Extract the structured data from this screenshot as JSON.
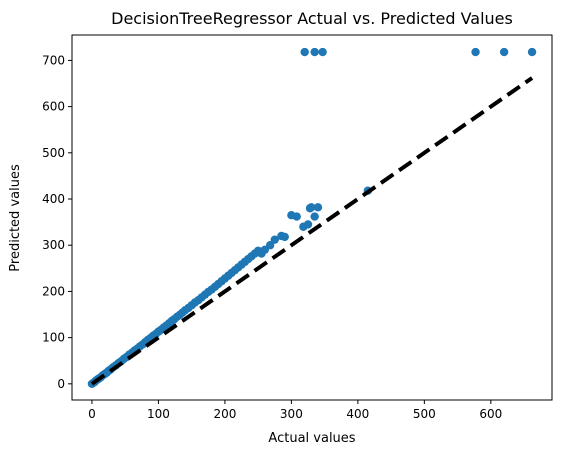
{
  "chart_data": {
    "type": "scatter",
    "title": "DecisionTreeRegressor Actual vs. Predicted Values",
    "xlabel": "Actual values",
    "ylabel": "Predicted values",
    "xlim": [
      -30,
      692
    ],
    "ylim": [
      -35,
      755
    ],
    "xticks": [
      0,
      100,
      200,
      300,
      400,
      500,
      600
    ],
    "yticks": [
      0,
      100,
      200,
      300,
      400,
      500,
      600,
      700
    ],
    "grid": false,
    "legend": "none",
    "colors": {
      "points": "#1f77b4",
      "reference_line": "#000000"
    },
    "reference_line": {
      "style": "dashed",
      "from": [
        0,
        0
      ],
      "to": [
        662,
        662
      ]
    },
    "points": {
      "x": [
        0,
        2,
        4,
        6,
        8,
        10,
        13,
        16,
        19,
        22,
        25,
        28,
        32,
        36,
        40,
        44,
        48,
        52,
        56,
        60,
        64,
        68,
        72,
        76,
        80,
        84,
        88,
        92,
        96,
        100,
        104,
        108,
        112,
        116,
        120,
        124,
        128,
        132,
        136,
        140,
        145,
        150,
        155,
        160,
        165,
        170,
        175,
        180,
        185,
        190,
        195,
        200,
        205,
        210,
        215,
        220,
        225,
        230,
        235,
        240,
        245,
        250,
        255,
        260,
        268,
        275,
        285,
        290,
        300,
        308,
        318,
        325,
        328,
        330,
        335,
        340,
        415,
        320,
        335,
        347,
        577,
        620,
        662
      ],
      "y": [
        0,
        2,
        4,
        7,
        9,
        11,
        14,
        18,
        21,
        24,
        28,
        31,
        36,
        40,
        45,
        49,
        54,
        58,
        63,
        67,
        72,
        76,
        81,
        85,
        90,
        95,
        99,
        104,
        108,
        113,
        117,
        122,
        126,
        131,
        136,
        140,
        145,
        149,
        154,
        159,
        164,
        170,
        176,
        181,
        187,
        193,
        199,
        204,
        210,
        216,
        222,
        228,
        234,
        240,
        246,
        252,
        258,
        264,
        270,
        276,
        282,
        288,
        282,
        290,
        300,
        312,
        320,
        318,
        365,
        362,
        340,
        345,
        380,
        382,
        362,
        382,
        418,
        718,
        718,
        718,
        718,
        718,
        718
      ]
    }
  }
}
